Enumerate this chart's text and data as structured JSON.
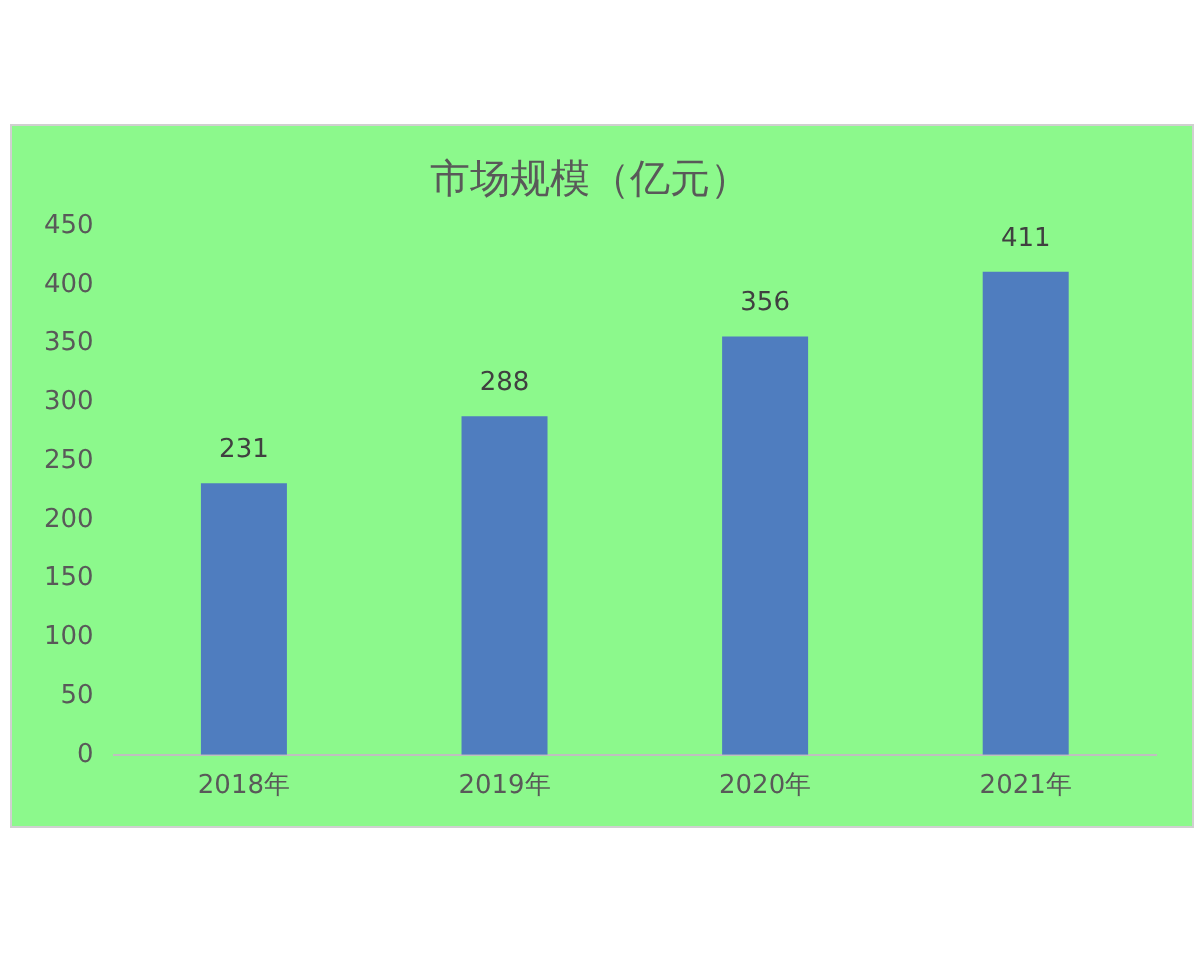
{
  "chart_data": {
    "type": "bar",
    "title": "市场规模（亿元）",
    "categories": [
      "2018年",
      "2019年",
      "2020年",
      "2021年"
    ],
    "values": [
      231,
      288,
      356,
      411
    ],
    "color": "#4f7dbf",
    "ylim": [
      0,
      450
    ],
    "yticks": [
      0,
      50,
      100,
      150,
      200,
      250,
      300,
      350,
      400,
      450
    ],
    "grid": false,
    "legend": false,
    "data_labels": true
  }
}
